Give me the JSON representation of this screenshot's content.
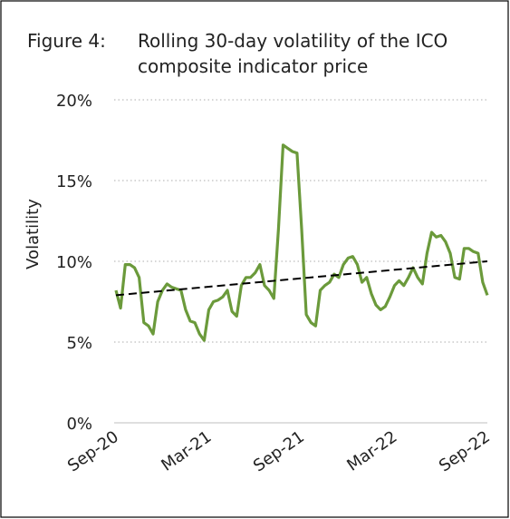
{
  "chart_data": {
    "type": "line",
    "figure_label": "Figure 4:",
    "title_lines": [
      "Rolling 30-day volatility of the ICO",
      "composite indicator price"
    ],
    "ylabel": "Volatility",
    "categories": [
      "Sep-20",
      null,
      null,
      null,
      null,
      null,
      null,
      null,
      null,
      null,
      null,
      null,
      null,
      null,
      null,
      null,
      null,
      null,
      null,
      null,
      "Mar-21",
      null,
      null,
      null,
      null,
      null,
      null,
      null,
      null,
      null,
      null,
      null,
      null,
      null,
      null,
      null,
      null,
      null,
      null,
      null,
      "Sep-21",
      null,
      null,
      null,
      null,
      null,
      null,
      null,
      null,
      null,
      null,
      null,
      null,
      null,
      null,
      null,
      null,
      null,
      null,
      null,
      "Mar-22",
      null,
      null,
      null,
      null,
      null,
      null,
      null,
      null,
      null,
      null,
      null,
      null,
      null,
      null,
      null,
      null,
      null,
      null,
      null,
      "Sep-22"
    ],
    "series": [
      {
        "color": "#6b9a3b",
        "values": [
          8.2,
          7.1,
          9.8,
          9.8,
          9.6,
          9.0,
          6.2,
          6.0,
          5.5,
          7.5,
          8.2,
          8.6,
          8.4,
          8.3,
          8.2,
          7.0,
          6.3,
          6.2,
          5.5,
          5.1,
          7.0,
          7.5,
          7.6,
          7.8,
          8.2,
          6.9,
          6.6,
          8.5,
          9.0,
          9.0,
          9.3,
          9.8,
          8.5,
          8.2,
          7.7,
          12.0,
          17.2,
          17.0,
          16.8,
          16.7,
          12.0,
          6.7,
          6.2,
          6.0,
          8.2,
          8.5,
          8.7,
          9.2,
          9.0,
          9.8,
          10.2,
          10.3,
          9.8,
          8.7,
          9.0,
          8.0,
          7.3,
          7.0,
          7.2,
          7.8,
          8.5,
          8.8,
          8.5,
          9.0,
          9.6,
          9.0,
          8.6,
          10.5,
          11.8,
          11.5,
          11.6,
          11.2,
          10.5,
          9.0,
          8.9,
          10.8,
          10.8,
          10.6,
          10.5,
          8.7,
          7.9
        ]
      }
    ],
    "trend": {
      "color": "#000000",
      "start": 7.9,
      "end": 10.0
    },
    "ylim": [
      0,
      20
    ],
    "yticks": [
      {
        "value": 0,
        "label": "0%"
      },
      {
        "value": 5,
        "label": "5%"
      },
      {
        "value": 10,
        "label": "10%"
      },
      {
        "value": 15,
        "label": "15%"
      },
      {
        "value": 20,
        "label": "20%"
      }
    ],
    "grid": true
  }
}
